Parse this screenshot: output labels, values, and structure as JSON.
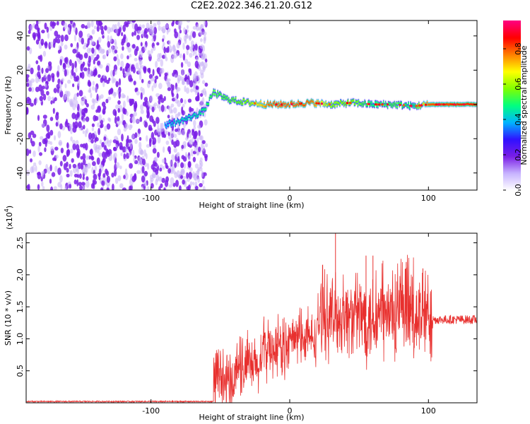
{
  "title": "C2E2.2022.346.21.20.G12",
  "colors": {
    "snr_line": "#e8302e",
    "spectrum_scatter": "#7a1fe6",
    "frame": "#000000"
  },
  "colorbar": {
    "label": "Normalized spectral amplitude",
    "ticks": [
      "0.0",
      "0.2",
      "0.4",
      "0.6",
      "0.8"
    ],
    "tick_values": [
      0.0,
      0.2,
      0.4,
      0.6,
      0.8
    ],
    "range": [
      0,
      0.96
    ],
    "colormap": [
      "#ffffff",
      "#c8b4ff",
      "#7a1fe6",
      "#3010ff",
      "#00b4ff",
      "#00ff80",
      "#80ff00",
      "#ffff00",
      "#ff8000",
      "#ff0000",
      "#ff0080"
    ]
  },
  "chart_data": [
    {
      "type": "heatmap",
      "xlabel": "Height of straight line (km)",
      "ylabel": "Frequency (Hz)",
      "xlim": [
        -190,
        135
      ],
      "ylim": [
        -50,
        49
      ],
      "x_ticks": [
        -100,
        0,
        100
      ],
      "x_tick_labels": [
        "-100",
        "0",
        "100"
      ],
      "y_ticks": [
        -40,
        -20,
        0,
        20,
        40
      ],
      "y_tick_labels": [
        "-40",
        "-20",
        "0",
        "20",
        "40"
      ],
      "noise_region": {
        "x_from": -190,
        "x_to": -60,
        "amplitude_level": 0.15
      },
      "ridge": {
        "x": [
          -90,
          -80,
          -70,
          -62,
          -55,
          -45,
          -30,
          -15,
          0,
          15,
          30,
          45,
          60,
          75,
          90,
          100,
          115,
          135
        ],
        "frequency": [
          -12,
          -10,
          -7,
          -4,
          7,
          3,
          1,
          0,
          0,
          1,
          0,
          1,
          0,
          0,
          -1,
          0,
          0,
          0
        ],
        "amplitude": [
          0.4,
          0.45,
          0.45,
          0.5,
          0.55,
          0.55,
          0.6,
          0.85,
          0.85,
          0.85,
          0.6,
          0.6,
          0.5,
          0.55,
          0.5,
          0.85,
          0.9,
          0.9
        ]
      }
    },
    {
      "type": "line",
      "name": "SNR",
      "xlabel": "Height of straight line (km)",
      "ylabel": "SNR (10 * v/v)",
      "y_scale_label": "(x10",
      "y_scale_exponent": "4",
      "xlim": [
        -190,
        135
      ],
      "ylim": [
        0,
        2.65
      ],
      "x_ticks": [
        -100,
        0,
        100
      ],
      "x_tick_labels": [
        "-100",
        "0",
        "100"
      ],
      "y_ticks": [
        0.5,
        1.0,
        1.5,
        2.0,
        2.5
      ],
      "y_tick_labels": [
        "0.5",
        "1.0",
        "1.5",
        "2.0",
        "2.5"
      ],
      "segments": [
        {
          "x_from": -190,
          "x_to": -55,
          "mean": 0.02,
          "spread": 0.01
        },
        {
          "x_from": -55,
          "x_to": -40,
          "mean": 0.3,
          "spread": 0.4
        },
        {
          "x_from": -40,
          "x_to": -20,
          "mean": 0.55,
          "spread": 0.4
        },
        {
          "x_from": -20,
          "x_to": 0,
          "mean": 0.85,
          "spread": 0.4
        },
        {
          "x_from": 0,
          "x_to": 20,
          "mean": 1.0,
          "spread": 0.35
        },
        {
          "x_from": 20,
          "x_to": 50,
          "mean": 1.35,
          "spread": 0.55
        },
        {
          "x_from": 50,
          "x_to": 103,
          "mean": 1.35,
          "spread": 0.65
        },
        {
          "x_from": 103,
          "x_to": 135,
          "mean": 1.3,
          "spread": 0.07
        }
      ],
      "peaks": [
        {
          "x": 33,
          "y": 2.65
        },
        {
          "x": 55,
          "y": 2.3
        },
        {
          "x": 60,
          "y": 2.3
        },
        {
          "x": 84,
          "y": 2.2
        },
        {
          "x": 96,
          "y": 2.1
        }
      ]
    }
  ]
}
